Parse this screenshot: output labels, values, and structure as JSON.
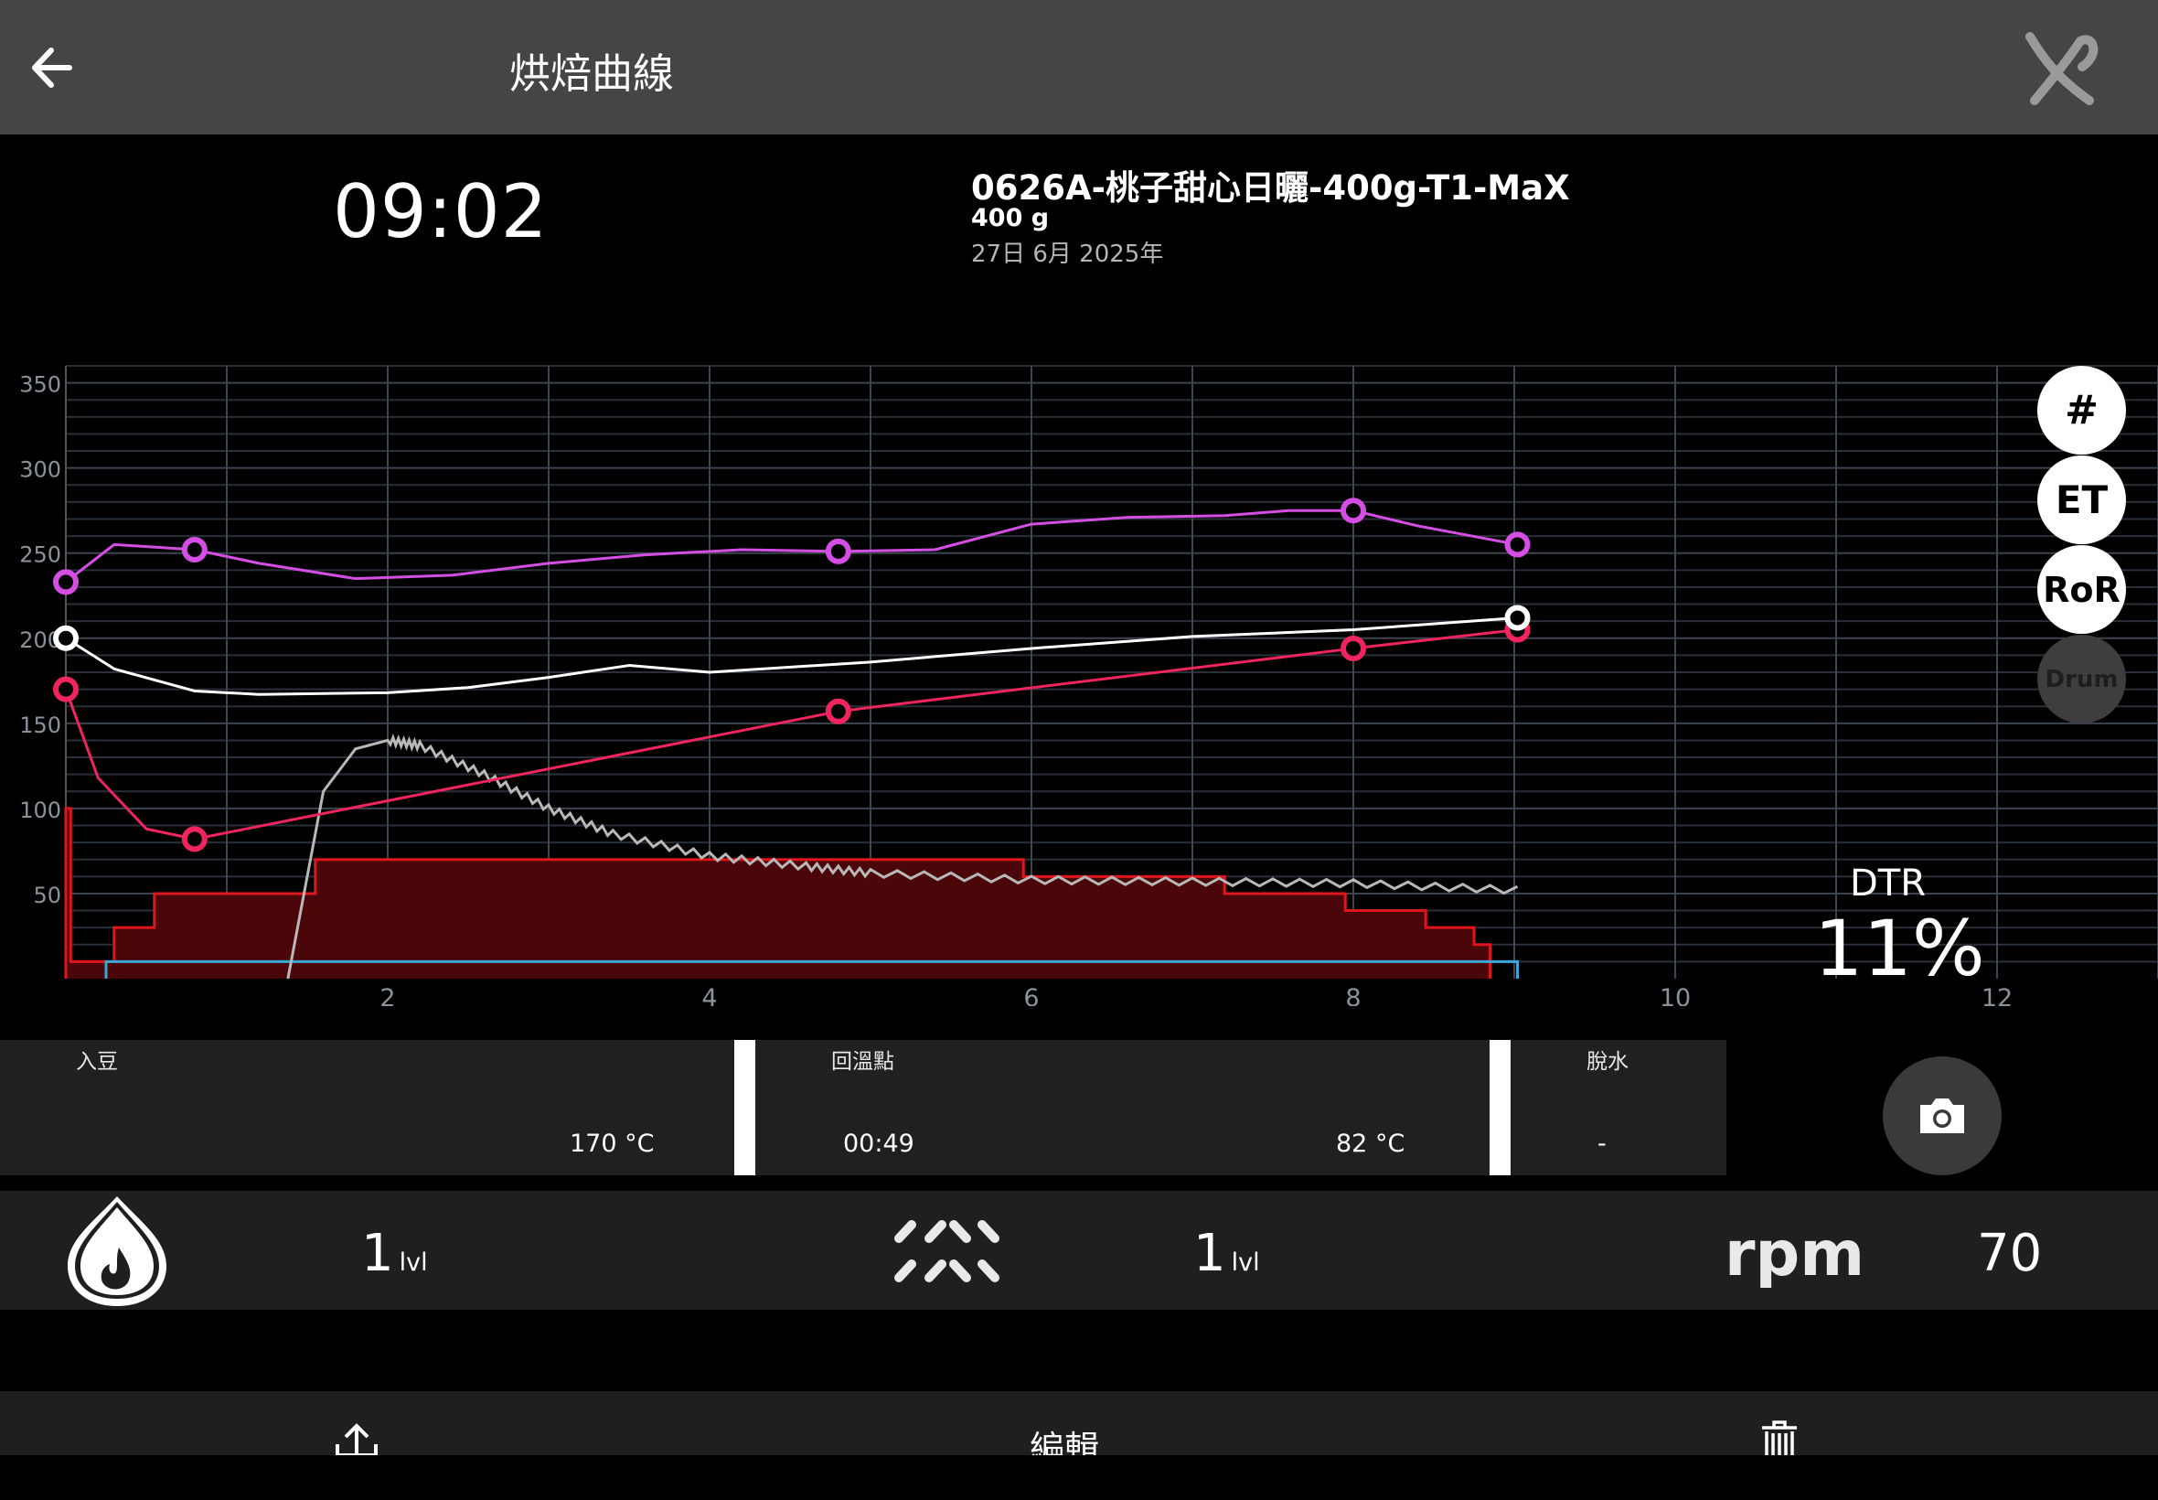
{
  "header": {
    "title": "烘焙曲線",
    "back_icon": "arrow-left-icon",
    "logo_icon": "brand-logo-icon"
  },
  "roast": {
    "timer": "09:02",
    "name": "0626A-桃子甜心日曬-400g-T1-MaX",
    "weight": "400 g",
    "date": "27日 6月 2025年"
  },
  "side_buttons": {
    "grid": "#",
    "et": "ET",
    "ror": "RoR",
    "drum": "Drum"
  },
  "dtr": {
    "label": "DTR",
    "value": "11%"
  },
  "events": [
    {
      "label": "入豆",
      "time": "",
      "temp": "170 °C"
    },
    {
      "label": "回溫點",
      "time": "00:49",
      "temp": "82 °C"
    },
    {
      "label": "脫水",
      "time": "-",
      "temp": ""
    }
  ],
  "controls": {
    "power": {
      "value": "1",
      "unit": "lvl",
      "icon": "flame-icon"
    },
    "fan": {
      "value": "1",
      "unit": "lvl",
      "icon": "fan-airflow-icon"
    },
    "drum": {
      "label": "rpm",
      "value": "70"
    }
  },
  "bottom": {
    "share_icon": "share-icon",
    "edit_label": "編輯",
    "delete_icon": "trash-icon"
  },
  "colors": {
    "et": "#d54ee4",
    "bt": "#ffffff",
    "profile": "#f0245e",
    "ror": "#b8b8b8",
    "power": "#e0161d",
    "drum": "#3aa7d8"
  },
  "chart_data": {
    "type": "line",
    "x_ticks": [
      2,
      4,
      6,
      8,
      10,
      12
    ],
    "y_ticks": [
      50,
      100,
      150,
      200,
      250,
      300,
      350
    ],
    "xlim": [
      0,
      13
    ],
    "ylim": [
      0,
      360
    ],
    "grid": true,
    "series": [
      {
        "key": "et",
        "x": [
          0,
          0.3,
          0.8,
          1.2,
          1.8,
          2.4,
          3,
          3.6,
          4.2,
          4.8,
          5.4,
          6,
          6.6,
          7.2,
          7.6,
          8,
          8.4,
          9.02
        ],
        "y": [
          233,
          255,
          252,
          244,
          235,
          237,
          244,
          249,
          252,
          251,
          252,
          267,
          271,
          272,
          275,
          275,
          266,
          255
        ],
        "markers": [
          0,
          0.8,
          4.8,
          8,
          9.02
        ]
      },
      {
        "key": "bt",
        "x": [
          0,
          0.3,
          0.8,
          1.2,
          2,
          2.5,
          3,
          3.5,
          4,
          5,
          6,
          7,
          8,
          9.02
        ],
        "y": [
          200,
          182,
          169,
          167,
          168,
          171,
          177,
          184,
          180,
          186,
          194,
          201,
          205,
          212
        ],
        "markers": [
          0,
          9.02
        ]
      },
      {
        "key": "profile",
        "x": [
          0,
          0.2,
          0.5,
          0.8,
          4.8,
          8,
          9.02
        ],
        "y": [
          170,
          118,
          88,
          82,
          157,
          194,
          205
        ],
        "markers": [
          0,
          0.8,
          4.8,
          8,
          9.02
        ]
      },
      {
        "key": "ror",
        "x": [
          1.38,
          1.6,
          1.8,
          2,
          2.2,
          2.6,
          3,
          3.4,
          4,
          4.6,
          5,
          6,
          7,
          8,
          9.02
        ],
        "y": [
          0,
          110,
          135,
          140,
          137,
          120,
          100,
          85,
          72,
          66,
          62,
          58,
          57,
          56,
          52
        ]
      },
      {
        "key": "power",
        "steps": [
          [
            0,
            100
          ],
          [
            0.03,
            10
          ],
          [
            0.3,
            30
          ],
          [
            0.55,
            50
          ],
          [
            1.55,
            70
          ],
          [
            4.2,
            70
          ],
          [
            5.95,
            60
          ],
          [
            7.2,
            50
          ],
          [
            7.95,
            40
          ],
          [
            8.45,
            30
          ],
          [
            8.75,
            20
          ],
          [
            8.85,
            0
          ]
        ]
      },
      {
        "key": "drum",
        "steps": [
          [
            0.25,
            10
          ],
          [
            9.02,
            10
          ]
        ]
      }
    ]
  }
}
